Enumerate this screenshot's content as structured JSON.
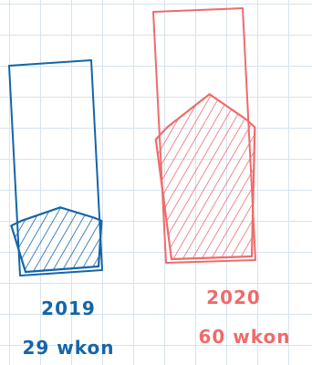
{
  "chart_data": {
    "type": "bar",
    "categories": [
      "2019",
      "2020"
    ],
    "values": [
      29,
      60
    ],
    "value_labels": [
      "29 wkon",
      "60 wkon"
    ],
    "colors": [
      "#1565a8",
      "#ef6b6b"
    ],
    "title": "",
    "xlabel": "",
    "ylabel": "",
    "grid": true
  }
}
